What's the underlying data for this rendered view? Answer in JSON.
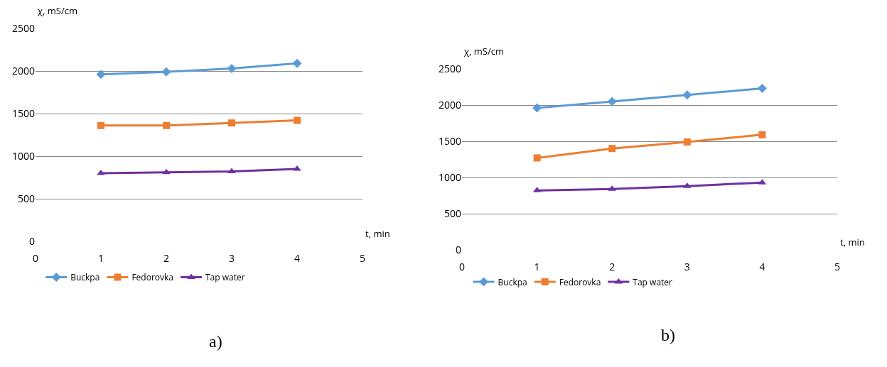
{
  "chart_data": [
    {
      "type": "line",
      "xlabel": "t, min",
      "ylabel": "χ, mS/cm",
      "x": [
        1,
        2,
        3,
        4
      ],
      "series": [
        {
          "name": "Buckpa",
          "color": "#5b9bd5",
          "values": [
            1960,
            1990,
            2030,
            2090
          ],
          "marker": "diamond"
        },
        {
          "name": "Fedorovka",
          "color": "#ed7d31",
          "values": [
            1360,
            1360,
            1390,
            1420
          ],
          "marker": "square"
        },
        {
          "name": "Tap water",
          "color": "#7030a0",
          "values": [
            800,
            810,
            820,
            850
          ],
          "marker": "triangle"
        }
      ],
      "xlim": [
        0,
        5
      ],
      "xticks": [
        0,
        1,
        2,
        3,
        4,
        5
      ],
      "ylim": [
        0,
        2500
      ],
      "yticks": [
        0,
        500,
        1000,
        1500,
        2000,
        2500
      ],
      "grid": "y",
      "legend": "bottom",
      "annotations": [
        "a)"
      ]
    },
    {
      "type": "line",
      "xlabel": "t, min",
      "ylabel": "χ, mS/cm",
      "x": [
        1,
        2,
        3,
        4
      ],
      "series": [
        {
          "name": "Buckpa",
          "color": "#5b9bd5",
          "values": [
            1960,
            2050,
            2140,
            2230
          ],
          "marker": "diamond"
        },
        {
          "name": "Fedorovka",
          "color": "#ed7d31",
          "values": [
            1270,
            1400,
            1490,
            1590
          ],
          "marker": "square"
        },
        {
          "name": "Tap water",
          "color": "#7030a0",
          "values": [
            820,
            840,
            880,
            930
          ],
          "marker": "triangle"
        }
      ],
      "xlim": [
        0,
        5
      ],
      "xticks": [
        0,
        1,
        2,
        3,
        4,
        5
      ],
      "ylim": [
        0,
        2500
      ],
      "yticks": [
        0,
        500,
        1000,
        1500,
        2000,
        2500
      ],
      "grid": "y",
      "legend": "bottom",
      "annotations": [
        "b)"
      ]
    }
  ]
}
